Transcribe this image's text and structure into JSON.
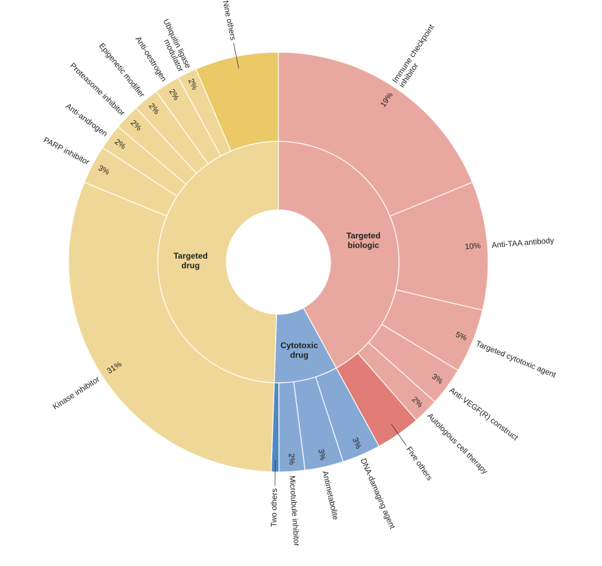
{
  "chart_data": {
    "type": "sunburst",
    "title": "",
    "inner_ring": [
      {
        "name": "Targeted biologic",
        "lines": [
          "Targeted",
          "biologic"
        ],
        "value": 46,
        "color": "#e9a89f"
      },
      {
        "name": "Cytotoxic drug",
        "lines": [
          "Cytotoxic",
          "drug"
        ],
        "value": 12,
        "color": "#85a9d4"
      },
      {
        "name": "Targeted drug",
        "lines": [
          "Targeted",
          "drug"
        ],
        "value": 50,
        "color": "#efd798"
      }
    ],
    "outer_ring": [
      {
        "name": "Immune checkpoint inhibitor",
        "lines": [
          "Immune checkpoint",
          "inhibitor"
        ],
        "value": 19,
        "pct_label": "19%",
        "parent": "Targeted biologic",
        "color": "#e9a89f"
      },
      {
        "name": "Anti-TAA antibody",
        "lines": [
          "Anti-TAA antibody"
        ],
        "value": 10,
        "pct_label": "10%",
        "parent": "Targeted biologic",
        "color": "#e9a89f"
      },
      {
        "name": "Targeted cytotoxic agent",
        "lines": [
          "Targeted cytotoxic agent"
        ],
        "value": 5,
        "pct_label": "5%",
        "parent": "Targeted biologic",
        "color": "#e9a89f"
      },
      {
        "name": "Anti-VEGF(R) construct",
        "lines": [
          "Anti-VEGF(R) construct"
        ],
        "value": 3,
        "pct_label": "3%",
        "parent": "Targeted biologic",
        "color": "#e9a89f"
      },
      {
        "name": "Autologous cell therapy",
        "lines": [
          "Autologous cell therapy"
        ],
        "value": 2,
        "pct_label": "2%",
        "parent": "Targeted biologic",
        "color": "#e9a89f"
      },
      {
        "name": "Five others",
        "lines": [
          "Five others"
        ],
        "value": 3.5,
        "pct_label": "",
        "parent": "Targeted biologic",
        "color": "#e27c76"
      },
      {
        "name": "DNA-damaging agent",
        "lines": [
          "DNA-damaging agent"
        ],
        "value": 3,
        "pct_label": "3%",
        "parent": "Cytotoxic drug",
        "color": "#85a9d4"
      },
      {
        "name": "Antimetabolite",
        "lines": [
          "Antimetabolite"
        ],
        "value": 3,
        "pct_label": "3%",
        "parent": "Cytotoxic drug",
        "color": "#85a9d4"
      },
      {
        "name": "Microtubule inhibitor",
        "lines": [
          "Microtubule inhibitor"
        ],
        "value": 2,
        "pct_label": "2%",
        "parent": "Cytotoxic drug",
        "color": "#85a9d4"
      },
      {
        "name": "Two others",
        "lines": [
          "Two others"
        ],
        "value": 0.6,
        "pct_label": "",
        "parent": "Cytotoxic drug",
        "color": "#4f88c4"
      },
      {
        "name": "Kinase inhibitor",
        "lines": [
          "Kinase inhibitor"
        ],
        "value": 31,
        "pct_label": "31%",
        "parent": "Targeted drug",
        "color": "#efd798"
      },
      {
        "name": "PARP inhibitor",
        "lines": [
          "PARP inhibitor"
        ],
        "value": 3,
        "pct_label": "3%",
        "parent": "Targeted drug",
        "color": "#efd798"
      },
      {
        "name": "Anti-androgen",
        "lines": [
          "Anti-androgen"
        ],
        "value": 2,
        "pct_label": "2%",
        "parent": "Targeted drug",
        "color": "#efd798"
      },
      {
        "name": "Proteasome inhibitor",
        "lines": [
          "Proteasome inhibitor"
        ],
        "value": 2,
        "pct_label": "2%",
        "parent": "Targeted drug",
        "color": "#efd798"
      },
      {
        "name": "Epigenetic modifier",
        "lines": [
          "Epigenetic modifier"
        ],
        "value": 2,
        "pct_label": "2%",
        "parent": "Targeted drug",
        "color": "#efd798"
      },
      {
        "name": "Anti-oestrogen",
        "lines": [
          "Anti-oestrogen"
        ],
        "value": 2,
        "pct_label": "2%",
        "parent": "Targeted drug",
        "color": "#efd798"
      },
      {
        "name": "Ubiquitin ligase modulator",
        "lines": [
          "Ubiquitin ligase",
          "modulator"
        ],
        "value": 1.5,
        "pct_label": "2%",
        "parent": "Targeted drug",
        "color": "#efd798"
      },
      {
        "name": "Nine others",
        "lines": [
          "Nine others"
        ],
        "value": 6.5,
        "pct_label": "",
        "parent": "Targeted drug",
        "color": "#eac966"
      }
    ],
    "start_category": "Immune checkpoint inhibitor",
    "direction": "clockwise",
    "separator_color": "#ffffff"
  }
}
